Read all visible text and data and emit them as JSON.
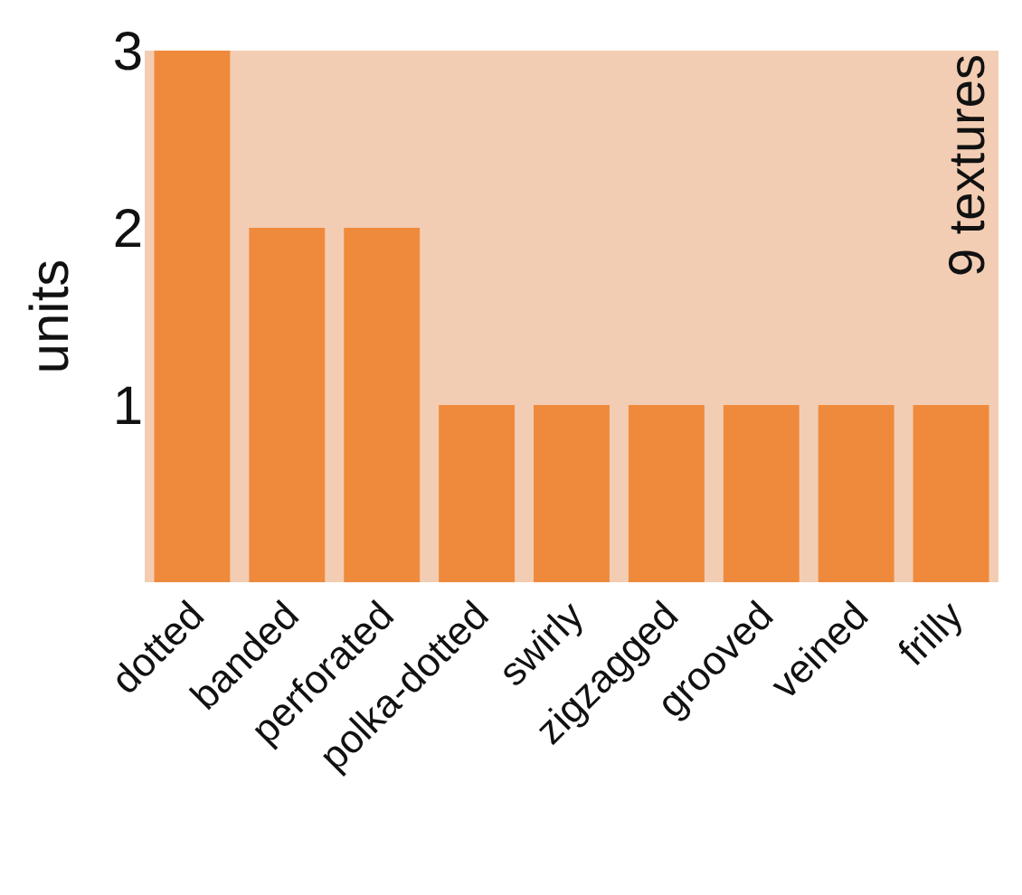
{
  "chart_data": {
    "type": "bar",
    "ylabel": "units",
    "categories": [
      "dotted",
      "banded",
      "perforated",
      "polka-dotted",
      "swirly",
      "zigzagged",
      "grooved",
      "veined",
      "frilly"
    ],
    "values": [
      3,
      2,
      2,
      1,
      1,
      1,
      1,
      1,
      1
    ],
    "color": "#ef8a3c",
    "ylim": [
      0,
      3
    ],
    "yticks": [
      1,
      2,
      3
    ],
    "grid": false,
    "legend": false,
    "annotations": [
      "9 textures"
    ]
  }
}
